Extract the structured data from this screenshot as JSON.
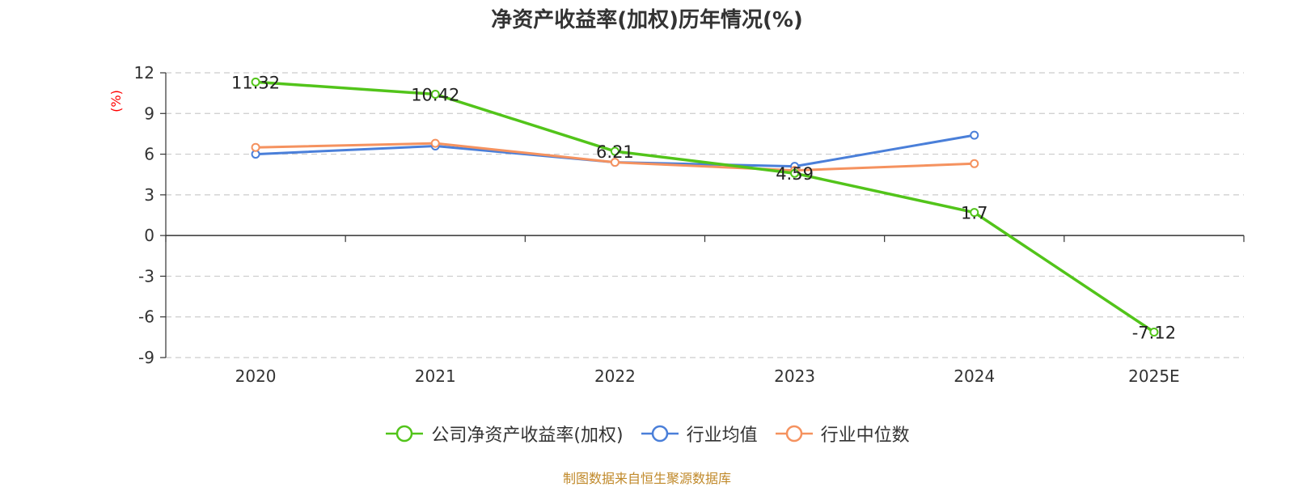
{
  "chart_data": {
    "type": "line",
    "title": "净资产收益率(加权)历年情况(%)",
    "ylabel": "(%)",
    "categories": [
      "2020",
      "2021",
      "2022",
      "2023",
      "2024",
      "2025E"
    ],
    "ylim": [
      -9,
      12
    ],
    "yticks": [
      12,
      9,
      6,
      3,
      0,
      -3,
      -6,
      -9
    ],
    "grid": true,
    "legend_position": "bottom",
    "series": [
      {
        "name": "公司净资产收益率(加权)",
        "color": "#52c41a",
        "values": [
          11.32,
          10.42,
          6.21,
          4.59,
          1.7,
          -7.12
        ],
        "labels": [
          "11.32",
          "10.42",
          "6.21",
          "4.59",
          "1.7",
          "-7.12"
        ]
      },
      {
        "name": "行业均值",
        "color": "#4a7fd9",
        "values": [
          6.0,
          6.6,
          5.4,
          5.1,
          7.4,
          null
        ]
      },
      {
        "name": "行业中位数",
        "color": "#f5925f",
        "values": [
          6.5,
          6.8,
          5.4,
          4.8,
          5.3,
          null
        ]
      }
    ]
  },
  "legend": [
    {
      "label": "公司净资产收益率(加权)",
      "color": "#52c41a"
    },
    {
      "label": "行业均值",
      "color": "#4a7fd9"
    },
    {
      "label": "行业中位数",
      "color": "#f5925f"
    }
  ],
  "footer": {
    "source": "制图数据来自恒生聚源数据库"
  }
}
